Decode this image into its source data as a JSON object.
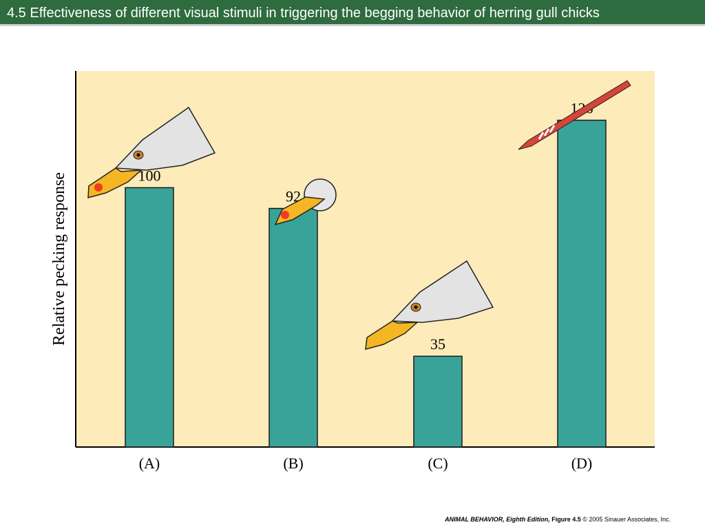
{
  "header": {
    "title": "4.5  Effectiveness of different visual stimuli in triggering the begging behavior of herring gull chicks"
  },
  "chart_data": {
    "type": "bar",
    "categories": [
      "(A)",
      "(B)",
      "(C)",
      "(D)"
    ],
    "values": [
      100,
      92,
      35,
      126
    ],
    "data_labels": [
      "100",
      "92",
      "35",
      "126"
    ],
    "ylabel": "Relative pecking response",
    "xlabel": "",
    "ylim": [
      0,
      145
    ],
    "grid": false,
    "stimuli": [
      "gull-head-with-red-spot-icon",
      "small-head-with-red-spot-icon",
      "gull-head-no-spot-icon",
      "red-striped-stick-icon"
    ],
    "colors": {
      "plot_bg": "#fdebb9",
      "bar": "#3aa399",
      "bar_stroke": "#1a1a1a"
    }
  },
  "footer": {
    "book": "ANIMAL BEHAVIOR, Eighth Edition,",
    "figure": "Figure 4.5",
    "copyright": "© 2005 Sinauer Associates, Inc."
  }
}
